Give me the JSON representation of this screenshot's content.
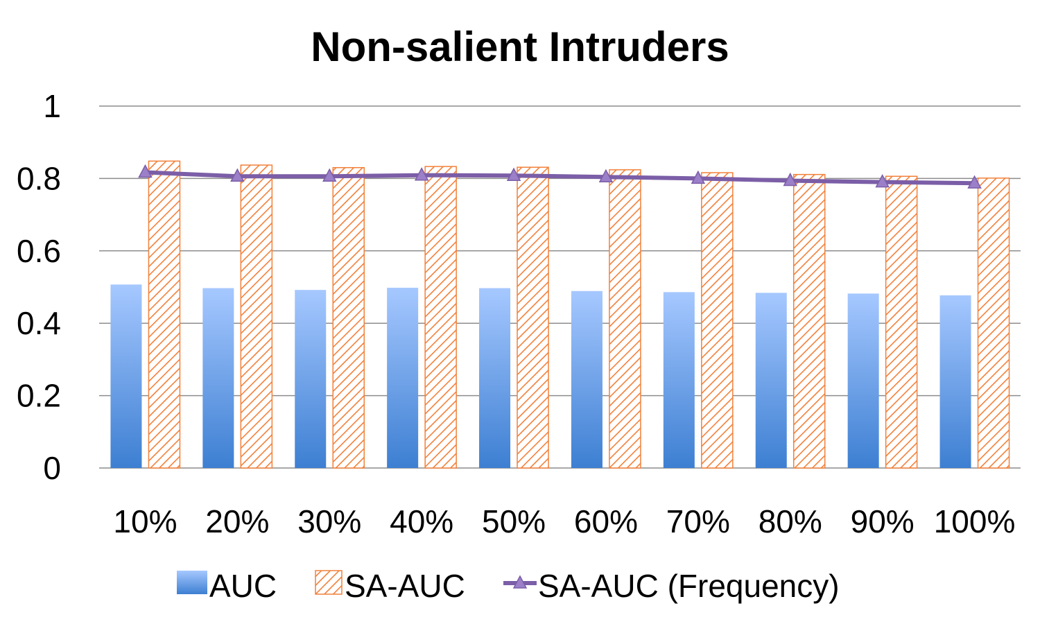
{
  "chart_data": {
    "type": "bar",
    "title": "Non-salient Intruders",
    "xlabel": "",
    "ylabel": "",
    "categories": [
      "10%",
      "20%",
      "30%",
      "40%",
      "50%",
      "60%",
      "70%",
      "80%",
      "90%",
      "100%"
    ],
    "yticks": [
      "0",
      "0.2",
      "0.4",
      "0.6",
      "0.8",
      "1"
    ],
    "ylim": [
      0,
      1
    ],
    "grid": true,
    "legend_position": "bottom",
    "series": [
      {
        "name": "AUC",
        "kind": "bar",
        "style": "gradient",
        "values": [
          0.507,
          0.497,
          0.492,
          0.498,
          0.497,
          0.489,
          0.486,
          0.484,
          0.482,
          0.477
        ]
      },
      {
        "name": "SA-AUC",
        "kind": "bar",
        "style": "hatched",
        "values": [
          0.848,
          0.837,
          0.83,
          0.833,
          0.831,
          0.824,
          0.816,
          0.811,
          0.806,
          0.801
        ]
      },
      {
        "name": "SA-AUC (Frequency)",
        "kind": "line",
        "marker": "triangle",
        "values": [
          0.817,
          0.806,
          0.806,
          0.809,
          0.808,
          0.804,
          0.8,
          0.794,
          0.79,
          0.787
        ]
      }
    ],
    "colors": {
      "auc_top": "#a6c8ff",
      "auc_bottom": "#3d7fd2",
      "sa_auc": "#f2803a",
      "line": "#7b5ea7",
      "marker": "#9b7fc8",
      "grid": "#8c8c8c"
    }
  }
}
